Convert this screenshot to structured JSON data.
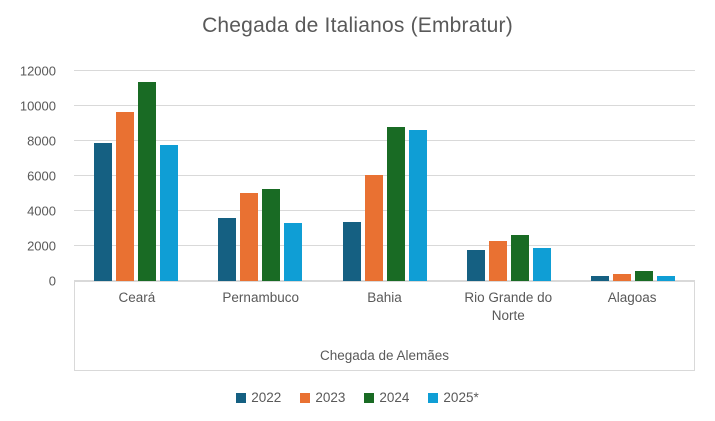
{
  "title": "Chegada de Italianos (Embratur)",
  "chart_data": {
    "type": "bar",
    "title": "Chegada de Italianos (Embratur)",
    "xlabel": "Chegada de Alemães",
    "ylabel": "",
    "categories": [
      "Ceará",
      "Pernambuco",
      "Bahia",
      "Rio Grande do Norte",
      "Alagoas"
    ],
    "series": [
      {
        "name": "2022",
        "color": "#156082",
        "values": [
          7900,
          3600,
          3350,
          1750,
          300
        ]
      },
      {
        "name": "2023",
        "color": "#E97132",
        "values": [
          9650,
          5050,
          6050,
          2300,
          380
        ]
      },
      {
        "name": "2024",
        "color": "#196B24",
        "values": [
          11400,
          5250,
          8800,
          2650,
          560
        ]
      },
      {
        "name": "2025*",
        "color": "#0F9ED5",
        "values": [
          7800,
          3300,
          8650,
          1900,
          280
        ]
      }
    ],
    "ylim": [
      0,
      12000
    ],
    "ytick_step": 2000,
    "grid": true,
    "legend_position": "bottom"
  },
  "colors": {
    "text": "#595959",
    "gridline": "#D9D9D9",
    "axis_border": "#D9D9D9",
    "background": "#FFFFFF"
  }
}
